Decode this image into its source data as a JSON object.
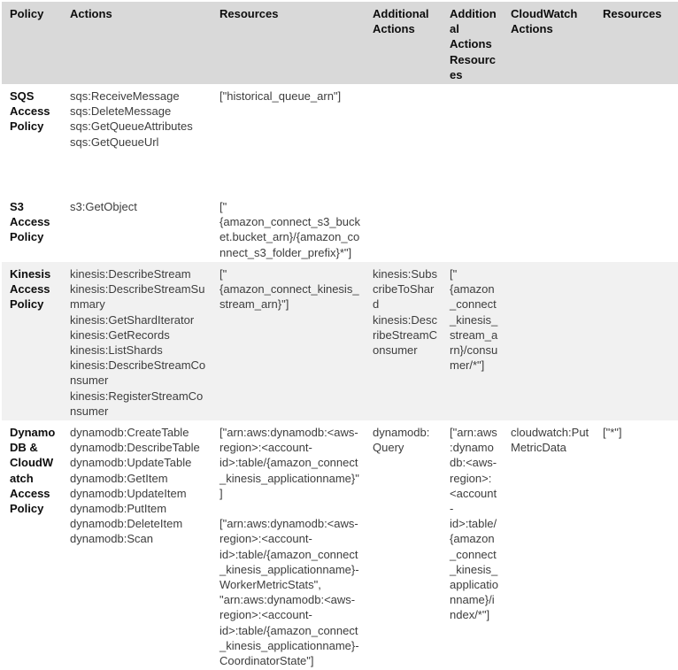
{
  "colors": {
    "header_bg": "#d9d9d9",
    "stripe_bg": "#f1f1f1",
    "body_text": "#3d3d3d",
    "bold_text": "#0d0d0d"
  },
  "table": {
    "columns": [
      "Policy",
      "Actions",
      "Resources",
      "Additional Actions",
      "Additional Actions Resources",
      "CloudWatch Actions",
      "Resources"
    ],
    "rows": [
      {
        "policy": "SQS Access Policy",
        "actions": [
          "sqs:ReceiveMessage",
          "sqs:DeleteMessage",
          "sqs:GetQueueAttributes",
          "sqs:GetQueueUrl"
        ],
        "resources": [
          "[\"historical_queue_arn\"]"
        ],
        "additional_actions": "",
        "additional_actions_resources": "",
        "cloudwatch_actions": "",
        "cloudwatch_resources": ""
      },
      {
        "policy": "S3 Access Policy",
        "actions": [
          "s3:GetObject"
        ],
        "resources": [
          "[\"{amazon_connect_s3_bucket.bucket_arn}/{amazon_connect_s3_folder_prefix}*\"]"
        ],
        "additional_actions": "",
        "additional_actions_resources": "",
        "cloudwatch_actions": "",
        "cloudwatch_resources": ""
      },
      {
        "policy": "Kinesis Access Policy",
        "actions": [
          "kinesis:DescribeStream",
          "kinesis:DescribeStreamSummary",
          "kinesis:GetShardIterator",
          "kinesis:GetRecords",
          "kinesis:ListShards",
          "kinesis:DescribeStreamConsumer",
          "kinesis:RegisterStreamConsumer"
        ],
        "resources": [
          "[\"{amazon_connect_kinesis_stream_arn}\"]"
        ],
        "additional_actions": [
          "kinesis:SubscribeToShard",
          "kinesis:DescribeStreamConsumer"
        ],
        "additional_actions_resources": [
          "[\"{amazon_connect_kinesis_stream_arn}/consumer/*\"]"
        ],
        "cloudwatch_actions": "",
        "cloudwatch_resources": ""
      },
      {
        "policy": "DynamoDB & CloudWatch Access Policy",
        "actions": [
          "dynamodb:CreateTable",
          "dynamodb:DescribeTable",
          "dynamodb:UpdateTable",
          "dynamodb:GetItem",
          "dynamodb:UpdateItem",
          "dynamodb:PutItem",
          "dynamodb:DeleteItem",
          "dynamodb:Scan"
        ],
        "resources": [
          "[\"arn:aws:dynamodb:<aws-region>:<account-id>:table/{amazon_connect_kinesis_applicationname}\"]",
          "",
          "[\"arn:aws:dynamodb:<aws-region>:<account-id>:table/{amazon_connect_kinesis_applicationname}-WorkerMetricStats\", \"arn:aws:dynamodb:<aws-region>:<account-id>:table/{amazon_connect_kinesis_applicationname}-CoordinatorState\"]"
        ],
        "additional_actions": [
          "dynamodb:Query"
        ],
        "additional_actions_resources": [
          "[\"arn:aws:dynamodb:<aws-region>:<account-id>:table/{amazon_connect_kinesis_applicationname}/index/*\"]"
        ],
        "cloudwatch_actions": [
          "cloudwatch:PutMetricData"
        ],
        "cloudwatch_resources": [
          "[\"*\"]"
        ]
      }
    ]
  }
}
